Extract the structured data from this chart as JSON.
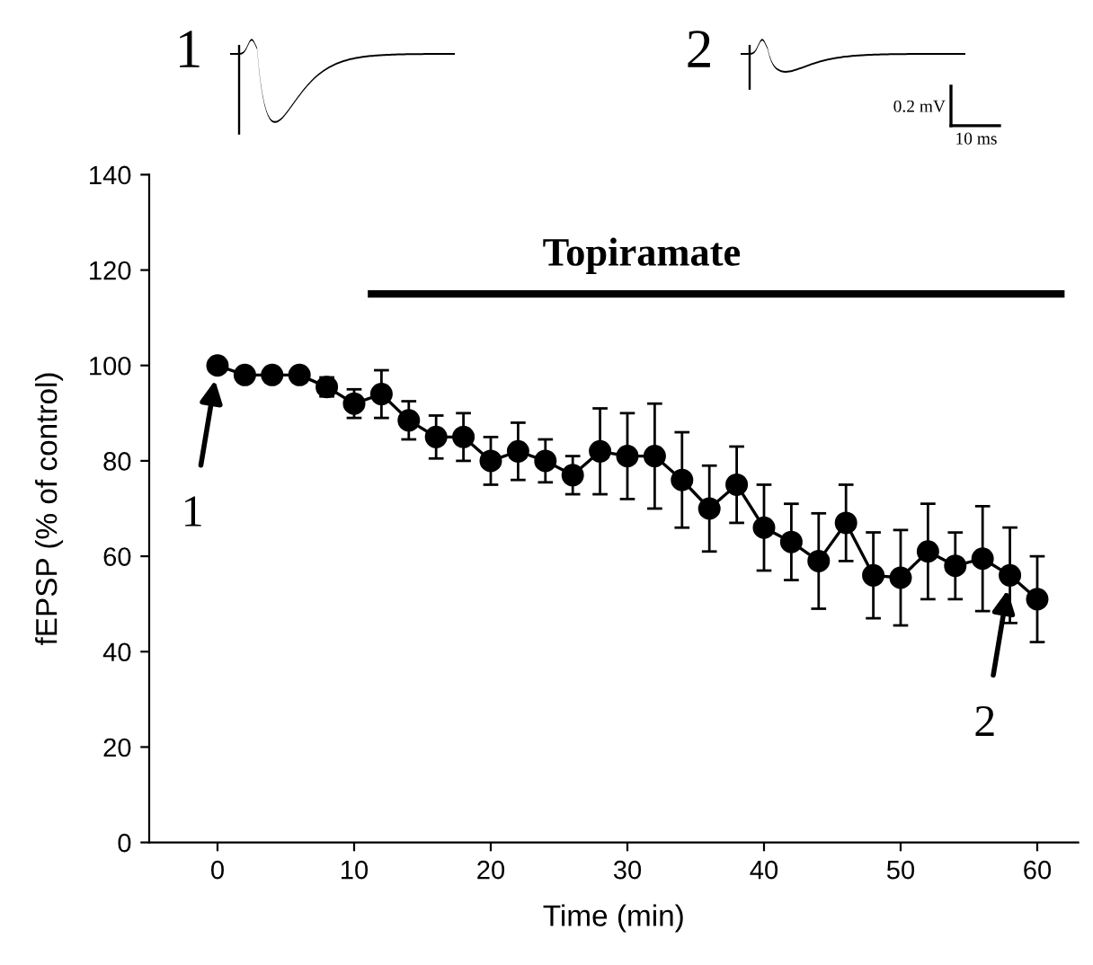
{
  "chart_data": {
    "type": "line",
    "xlabel": "Time (min)",
    "ylabel": "fEPSP (% of control)",
    "x": [
      0,
      2,
      4,
      6,
      8,
      10,
      12,
      14,
      16,
      18,
      20,
      22,
      24,
      26,
      28,
      30,
      32,
      34,
      36,
      38,
      40,
      42,
      44,
      46,
      48,
      50,
      52,
      54,
      56,
      58,
      60
    ],
    "series": [
      {
        "color": "#000000",
        "values": [
          100,
          98,
          98,
          98,
          95.5,
          92,
          94,
          88.5,
          85,
          85,
          80,
          82,
          80,
          77,
          82,
          81,
          81,
          76,
          70,
          75,
          66,
          63,
          59,
          67,
          56,
          55.5,
          61,
          58,
          59.5,
          56,
          51
        ],
        "errors": [
          0.5,
          1,
          1.5,
          1.5,
          2,
          3,
          5,
          4,
          4.5,
          5,
          5,
          6,
          4.5,
          4,
          9,
          9,
          11,
          10,
          9,
          8,
          9,
          8,
          10,
          8,
          9,
          10,
          10,
          7,
          11,
          10,
          9
        ]
      },
      {
        "name": "Topiramate",
        "type": "line",
        "color": "#000000",
        "x": [
          11,
          62
        ],
        "values": [
          115,
          115
        ],
        "marker": "none"
      }
    ],
    "marker": "circle",
    "line_style": "solid",
    "grid": false,
    "legend": false,
    "xlim": [
      -5,
      63
    ],
    "ylim": [
      0,
      140
    ],
    "xticks": [
      0,
      10,
      20,
      30,
      40,
      50,
      60
    ],
    "yticks": [
      0,
      20,
      40,
      60,
      80,
      100,
      120,
      140
    ],
    "annotations": [
      "1",
      "2",
      "0.2 mV",
      "10 ms",
      {
        "text": "1",
        "x": 0,
        "y": 100
      },
      {
        "text": "2",
        "x": 58,
        "y": 56
      }
    ]
  }
}
